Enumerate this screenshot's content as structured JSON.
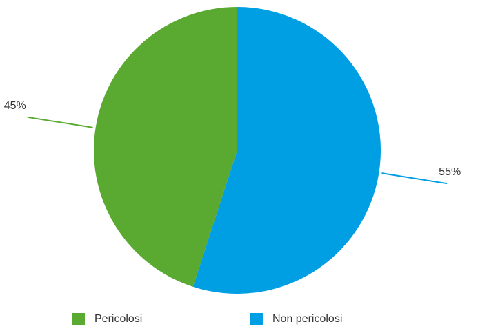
{
  "chart_data": {
    "type": "pie",
    "slices": [
      {
        "label": "Non pericolosi",
        "value": 55,
        "value_label": "55%",
        "color": "#009fe3"
      },
      {
        "label": "Pericolosi",
        "value": 45,
        "value_label": "45%",
        "color": "#5aa931"
      }
    ],
    "title": "",
    "start_angle_deg": 0,
    "direction": "clockwise",
    "legend_position": "bottom"
  }
}
